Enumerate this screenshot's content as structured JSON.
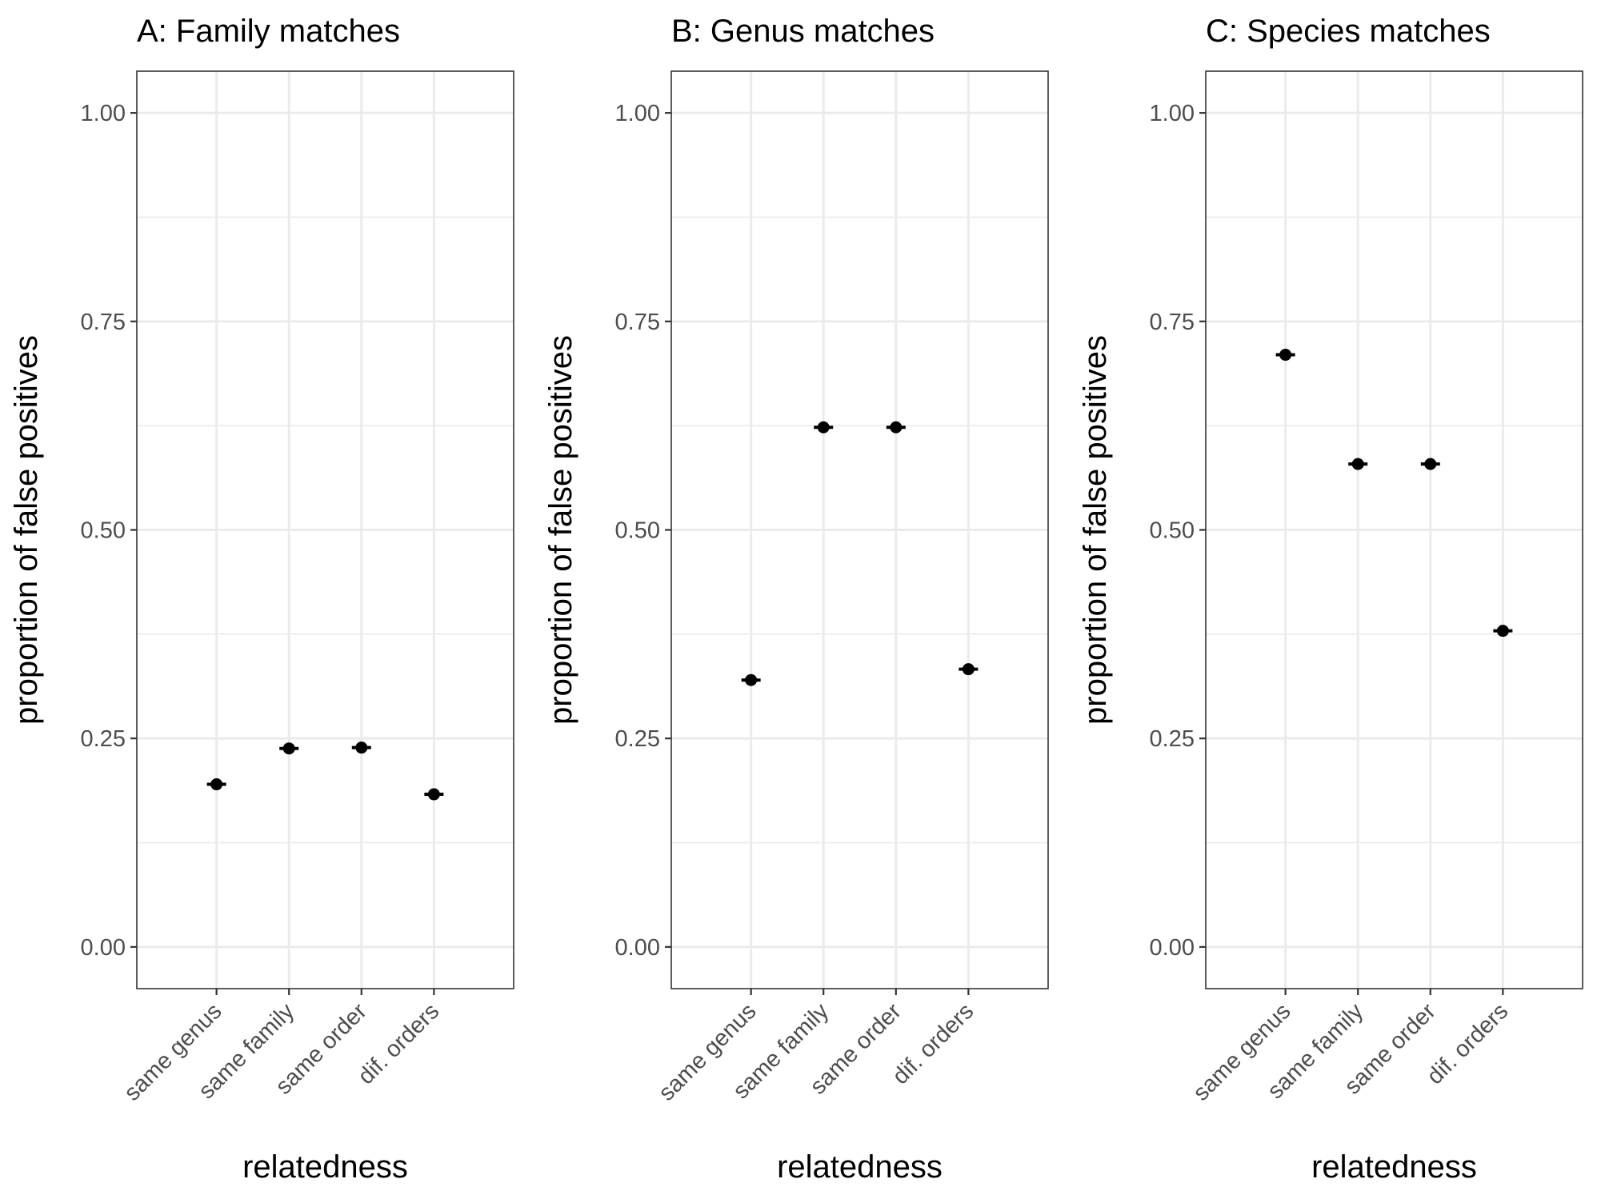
{
  "chart_data": [
    {
      "type": "scatter",
      "title": "A: Family matches",
      "xlabel": "relatedness",
      "ylabel": "proportion of false positives",
      "categories": [
        "same genus",
        "same family",
        "same order",
        "dif. orders"
      ],
      "values": [
        0.195,
        0.238,
        0.239,
        0.183
      ],
      "ylim": [
        -0.05,
        1.05
      ],
      "yticks": [
        "0.00",
        "0.25",
        "0.50",
        "0.75",
        "1.00"
      ],
      "grid": true,
      "legend": "none"
    },
    {
      "type": "scatter",
      "title": "B: Genus matches",
      "xlabel": "relatedness",
      "ylabel": "proportion of false positives",
      "categories": [
        "same genus",
        "same family",
        "same order",
        "dif. orders"
      ],
      "values": [
        0.32,
        0.623,
        0.623,
        0.333
      ],
      "ylim": [
        -0.05,
        1.05
      ],
      "yticks": [
        "0.00",
        "0.25",
        "0.50",
        "0.75",
        "1.00"
      ],
      "grid": true,
      "legend": "none"
    },
    {
      "type": "scatter",
      "title": "C: Species matches",
      "xlabel": "relatedness",
      "ylabel": "proportion of false positives",
      "categories": [
        "same genus",
        "same family",
        "same order",
        "dif. orders"
      ],
      "values": [
        0.71,
        0.579,
        0.579,
        0.379
      ],
      "ylim": [
        -0.05,
        1.05
      ],
      "yticks": [
        "0.00",
        "0.25",
        "0.50",
        "0.75",
        "1.00"
      ],
      "grid": true,
      "legend": "none"
    }
  ]
}
